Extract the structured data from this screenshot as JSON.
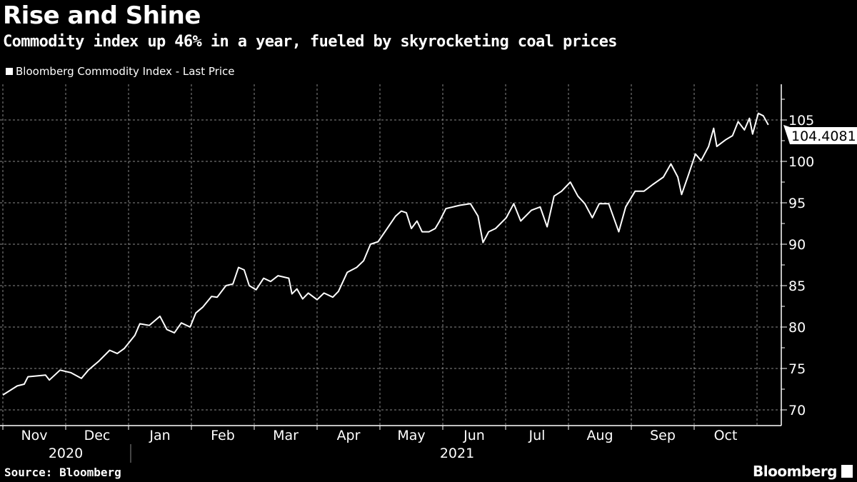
{
  "header": {
    "title": "Rise and Shine",
    "subtitle": "Commodity index up 46% in a year, fueled by skyrocketing coal prices"
  },
  "footer": {
    "source": "Source: Bloomberg",
    "logo": "Bloomberg"
  },
  "colors": {
    "background": "#000000",
    "line": "#ffffff",
    "grid": "#8a8a8a"
  },
  "chart_data": {
    "type": "line",
    "title": "Rise and Shine",
    "legend": [
      "Bloomberg Commodity Index - Last Price"
    ],
    "legend_position": "top-left",
    "xlabel": "",
    "ylabel": "",
    "x_unit": "months since start of Nov 2020",
    "x_ticks": [
      "Nov",
      "Dec",
      "Jan",
      "Feb",
      "Mar",
      "Apr",
      "May",
      "Jun",
      "Jul",
      "Aug",
      "Sep",
      "Oct"
    ],
    "years": [
      "2020",
      "2021"
    ],
    "y_ticks": [
      70,
      75,
      80,
      85,
      90,
      95,
      100,
      105
    ],
    "ylim": [
      69,
      109
    ],
    "grid": true,
    "last_price_label": "104.4081",
    "series": [
      {
        "name": "Bloomberg Commodity Index - Last Price",
        "points": [
          [
            0,
            71.8
          ],
          [
            0.23,
            72.9
          ],
          [
            0.34,
            73.1
          ],
          [
            0.4,
            74.0
          ],
          [
            0.68,
            74.2
          ],
          [
            0.74,
            73.6
          ],
          [
            0.91,
            74.8
          ],
          [
            1.08,
            74.5
          ],
          [
            1.25,
            73.8
          ],
          [
            1.36,
            74.8
          ],
          [
            1.53,
            75.9
          ],
          [
            1.7,
            77.2
          ],
          [
            1.82,
            76.8
          ],
          [
            1.93,
            77.4
          ],
          [
            2.1,
            79.0
          ],
          [
            2.18,
            80.4
          ],
          [
            2.33,
            80.2
          ],
          [
            2.5,
            81.3
          ],
          [
            2.61,
            79.7
          ],
          [
            2.73,
            79.3
          ],
          [
            2.84,
            80.5
          ],
          [
            2.98,
            80.0
          ],
          [
            3.07,
            81.7
          ],
          [
            3.18,
            82.4
          ],
          [
            3.32,
            83.7
          ],
          [
            3.41,
            83.6
          ],
          [
            3.55,
            85.0
          ],
          [
            3.66,
            85.2
          ],
          [
            3.75,
            87.2
          ],
          [
            3.84,
            86.9
          ],
          [
            3.92,
            85.0
          ],
          [
            4.03,
            84.5
          ],
          [
            4.15,
            85.9
          ],
          [
            4.26,
            85.5
          ],
          [
            4.38,
            86.2
          ],
          [
            4.55,
            85.9
          ],
          [
            4.6,
            84.0
          ],
          [
            4.68,
            84.6
          ],
          [
            4.77,
            83.4
          ],
          [
            4.86,
            84.1
          ],
          [
            5.0,
            83.3
          ],
          [
            5.11,
            84.1
          ],
          [
            5.25,
            83.6
          ],
          [
            5.34,
            84.3
          ],
          [
            5.48,
            86.6
          ],
          [
            5.63,
            87.2
          ],
          [
            5.74,
            88.0
          ],
          [
            5.85,
            90.0
          ],
          [
            5.97,
            90.3
          ],
          [
            6.08,
            91.5
          ],
          [
            6.25,
            93.4
          ],
          [
            6.34,
            94.0
          ],
          [
            6.42,
            93.8
          ],
          [
            6.5,
            91.9
          ],
          [
            6.59,
            92.8
          ],
          [
            6.67,
            91.5
          ],
          [
            6.78,
            91.5
          ],
          [
            6.88,
            91.9
          ],
          [
            6.95,
            92.8
          ],
          [
            7.05,
            94.3
          ],
          [
            7.16,
            94.5
          ],
          [
            7.27,
            94.7
          ],
          [
            7.44,
            94.9
          ],
          [
            7.56,
            93.4
          ],
          [
            7.64,
            90.2
          ],
          [
            7.73,
            91.5
          ],
          [
            7.84,
            91.9
          ],
          [
            8.01,
            93.2
          ],
          [
            8.13,
            94.9
          ],
          [
            8.24,
            92.8
          ],
          [
            8.41,
            94.1
          ],
          [
            8.55,
            94.5
          ],
          [
            8.66,
            92.1
          ],
          [
            8.77,
            95.8
          ],
          [
            8.89,
            96.4
          ],
          [
            9.03,
            97.5
          ],
          [
            9.15,
            95.8
          ],
          [
            9.26,
            94.9
          ],
          [
            9.38,
            93.2
          ],
          [
            9.49,
            94.9
          ],
          [
            9.64,
            94.9
          ],
          [
            9.8,
            91.5
          ],
          [
            9.91,
            94.5
          ],
          [
            10.06,
            96.4
          ],
          [
            10.2,
            96.4
          ],
          [
            10.34,
            97.2
          ],
          [
            10.51,
            98.1
          ],
          [
            10.63,
            99.7
          ],
          [
            10.74,
            98.1
          ],
          [
            10.8,
            96.0
          ],
          [
            10.91,
            98.4
          ],
          [
            11.02,
            100.9
          ],
          [
            11.11,
            100.1
          ],
          [
            11.23,
            101.8
          ],
          [
            11.31,
            104.0
          ],
          [
            11.36,
            101.8
          ],
          [
            11.5,
            102.6
          ],
          [
            11.61,
            103.1
          ],
          [
            11.7,
            104.8
          ],
          [
            11.8,
            103.8
          ],
          [
            11.88,
            105.2
          ],
          [
            11.93,
            103.3
          ],
          [
            12.02,
            105.8
          ],
          [
            12.1,
            105.5
          ],
          [
            12.18,
            104.4081
          ]
        ]
      }
    ]
  }
}
